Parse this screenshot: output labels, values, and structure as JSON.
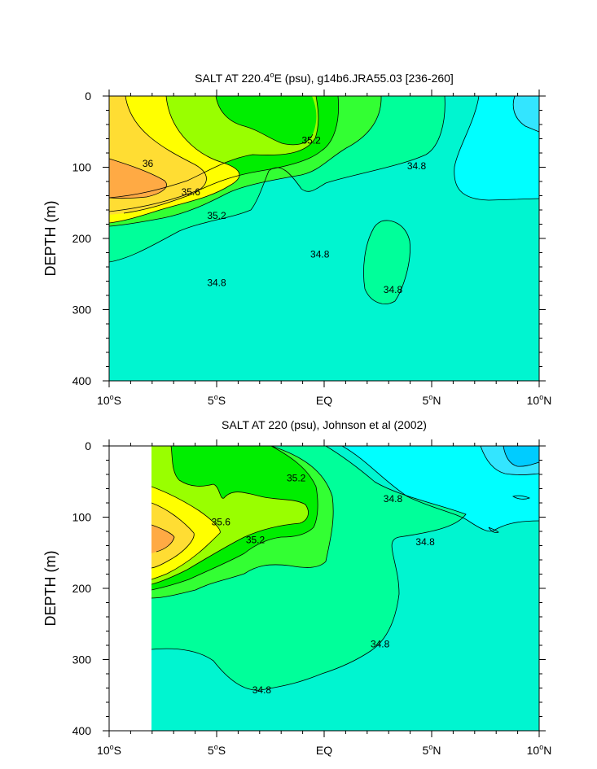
{
  "colors": {
    "s34_6": "#00ffff",
    "s34_4": "#33e5ff",
    "s34_2": "#00ccff",
    "s34_8": "#00f5d0",
    "s35_0": "#00ff9a",
    "s35_2": "#33ff33",
    "s35_4": "#00ee00",
    "s35_6": "#99ff00",
    "s35_8": "#ffff00",
    "s36_0": "#ffdd33",
    "s36_2": "#ffaa44",
    "line": "#000000"
  },
  "chart_data": [
    {
      "type": "contour",
      "title_main": "SALT AT 220.4",
      "title_sup": "o",
      "title_rest": "E (psu), g14b6.JRA55.03 [236-260]",
      "ylabel": "DEPTH (m)",
      "xlabel": "",
      "xlim": [
        -10,
        10
      ],
      "ylim": [
        0,
        400
      ],
      "y_inverted": true,
      "x_ticks": [
        {
          "v": -10,
          "main": "10",
          "deg": "o",
          "hemi": "S"
        },
        {
          "v": -5,
          "main": "5",
          "deg": "o",
          "hemi": "S"
        },
        {
          "v": 0,
          "main": "EQ",
          "deg": "",
          "hemi": ""
        },
        {
          "v": 5,
          "main": "5",
          "deg": "o",
          "hemi": "N"
        },
        {
          "v": 10,
          "main": "10",
          "deg": "o",
          "hemi": "N"
        }
      ],
      "y_ticks": [
        {
          "v": 0,
          "label": "0"
        },
        {
          "v": 100,
          "label": "100"
        },
        {
          "v": 200,
          "label": "200"
        },
        {
          "v": 300,
          "label": "300"
        },
        {
          "v": 400,
          "label": "400"
        }
      ],
      "contour_levels": [
        34.4,
        34.6,
        34.8,
        35.0,
        35.2,
        35.4,
        35.6,
        35.8,
        36.0,
        36.2
      ],
      "contour_labels": [
        {
          "text": "36",
          "x": -8.2,
          "y": 95
        },
        {
          "text": "35.6",
          "x": -6.2,
          "y": 135
        },
        {
          "text": "35.2",
          "x": -5.0,
          "y": 168
        },
        {
          "text": "35.2",
          "x": -0.6,
          "y": 62
        },
        {
          "text": "34.8",
          "x": 4.3,
          "y": 98
        },
        {
          "text": "34.8",
          "x": -0.2,
          "y": 222
        },
        {
          "text": "34.8",
          "x": 3.2,
          "y": 272
        },
        {
          "text": "34.8",
          "x": -5.0,
          "y": 262
        }
      ]
    },
    {
      "type": "contour",
      "title_main": "SALT AT 220 (psu), Johnson et al (2002)",
      "title_sup": "",
      "title_rest": "",
      "ylabel": "DEPTH (m)",
      "xlabel": "",
      "xlim": [
        -10,
        10
      ],
      "ylim": [
        0,
        400
      ],
      "y_inverted": true,
      "data_xlim": [
        -8,
        10
      ],
      "x_ticks": [
        {
          "v": -10,
          "main": "10",
          "deg": "o",
          "hemi": "S"
        },
        {
          "v": -5,
          "main": "5",
          "deg": "o",
          "hemi": "S"
        },
        {
          "v": 0,
          "main": "EQ",
          "deg": "",
          "hemi": ""
        },
        {
          "v": 5,
          "main": "5",
          "deg": "o",
          "hemi": "N"
        },
        {
          "v": 10,
          "main": "10",
          "deg": "o",
          "hemi": "N"
        }
      ],
      "y_ticks": [
        {
          "v": 0,
          "label": "0"
        },
        {
          "v": 100,
          "label": "100"
        },
        {
          "v": 200,
          "label": "200"
        },
        {
          "v": 300,
          "label": "300"
        },
        {
          "v": 400,
          "label": "400"
        }
      ],
      "contour_levels": [
        34.2,
        34.4,
        34.6,
        34.8,
        35.0,
        35.2,
        35.4,
        35.6,
        35.8,
        36.0
      ],
      "contour_labels": [
        {
          "text": "35.2",
          "x": -1.3,
          "y": 45
        },
        {
          "text": "35.6",
          "x": -4.8,
          "y": 107
        },
        {
          "text": "35.2",
          "x": -3.2,
          "y": 132
        },
        {
          "text": "34.8",
          "x": 3.2,
          "y": 74
        },
        {
          "text": "34.8",
          "x": 4.7,
          "y": 135
        },
        {
          "text": "34.8",
          "x": 2.6,
          "y": 278
        },
        {
          "text": "34.8",
          "x": -2.9,
          "y": 343
        }
      ]
    }
  ]
}
